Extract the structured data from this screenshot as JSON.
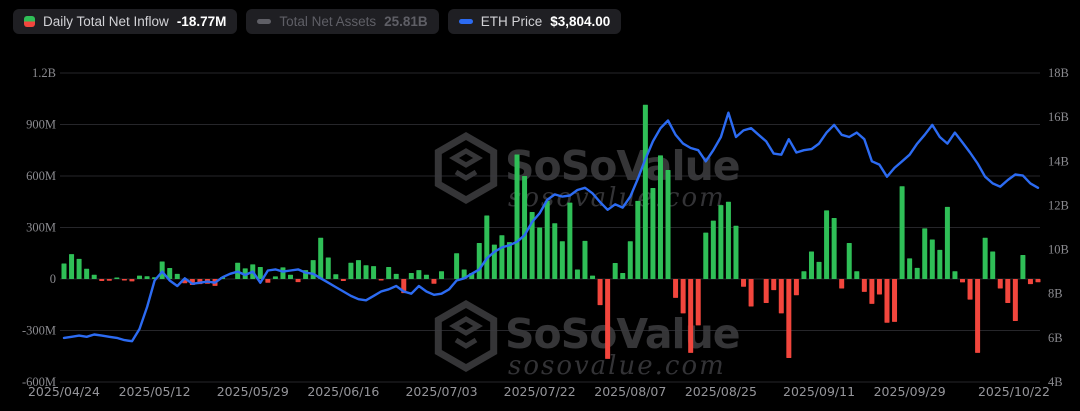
{
  "page": {
    "background": "#000000"
  },
  "legend": {
    "items": [
      {
        "id": "daily-net-inflow",
        "label": "Daily Total Net Inflow",
        "value": "-18.77M",
        "icon": "split-green-red-square",
        "enabled": true
      },
      {
        "id": "total-net-assets",
        "label": "Total Net Assets",
        "value": "25.81B",
        "icon": "gray-dash",
        "enabled": false
      },
      {
        "id": "eth-price",
        "label": "ETH Price",
        "value": "$3,804.00",
        "icon": "blue-dash",
        "enabled": true
      }
    ]
  },
  "watermark": {
    "brand": "SoSoValue",
    "domain": "sosovalue.com",
    "logo": "sosovalue-cube-logo"
  },
  "colors": {
    "bg": "#000000",
    "chip": "#1f1f23",
    "green": "#2fbf57",
    "red": "#f2463d",
    "blue": "#2c6bf2",
    "grid": "#26262a",
    "axisText": "#8a8a8f",
    "xAxisText": "#95959a",
    "legendText": "#d2d2d6",
    "legendValue": "#ffffff",
    "disabled": "#5f5f66",
    "watermark": "#3b3b3e",
    "watermarkSub": "#434347"
  },
  "axes": {
    "left": {
      "ticks": [
        "1.2B",
        "900M",
        "600M",
        "300M",
        "0",
        "-300M",
        "-600M"
      ],
      "range_millions": [
        -600,
        1200
      ]
    },
    "right": {
      "ticks": [
        "18B",
        "16B",
        "14B",
        "12B",
        "10B",
        "8B",
        "6B",
        "4B"
      ],
      "range_billions": [
        4,
        18
      ]
    },
    "x": {
      "ticks": [
        {
          "label": "2025/04/24",
          "index": 0
        },
        {
          "label": "2025/05/12",
          "index": 12
        },
        {
          "label": "2025/05/29",
          "index": 25
        },
        {
          "label": "2025/06/16",
          "index": 37
        },
        {
          "label": "2025/07/03",
          "index": 50
        },
        {
          "label": "2025/07/22",
          "index": 63
        },
        {
          "label": "2025/08/07",
          "index": 75
        },
        {
          "label": "2025/08/25",
          "index": 87
        },
        {
          "label": "2025/09/11",
          "index": 100
        },
        {
          "label": "2025/09/29",
          "index": 112
        },
        {
          "label": "2025/10/22",
          "index": 129
        }
      ]
    }
  },
  "chart_data": {
    "type": "combo",
    "x_dates": [
      "2025/04/24",
      "2025/04/25",
      "2025/04/28",
      "2025/04/29",
      "2025/04/30",
      "2025/05/01",
      "2025/05/02",
      "2025/05/05",
      "2025/05/06",
      "2025/05/07",
      "2025/05/08",
      "2025/05/09",
      "2025/05/12",
      "2025/05/13",
      "2025/05/14",
      "2025/05/15",
      "2025/05/16",
      "2025/05/19",
      "2025/05/20",
      "2025/05/21",
      "2025/05/22",
      "2025/05/23",
      "2025/05/26",
      "2025/05/27",
      "2025/05/28",
      "2025/05/29",
      "2025/05/30",
      "2025/06/02",
      "2025/06/03",
      "2025/06/04",
      "2025/06/05",
      "2025/06/06",
      "2025/06/09",
      "2025/06/10",
      "2025/06/11",
      "2025/06/12",
      "2025/06/13",
      "2025/06/16",
      "2025/06/17",
      "2025/06/18",
      "2025/06/19",
      "2025/06/20",
      "2025/06/23",
      "2025/06/24",
      "2025/06/25",
      "2025/06/26",
      "2025/06/27",
      "2025/06/30",
      "2025/07/01",
      "2025/07/02",
      "2025/07/03",
      "2025/07/04",
      "2025/07/07",
      "2025/07/08",
      "2025/07/09",
      "2025/07/10",
      "2025/07/11",
      "2025/07/14",
      "2025/07/15",
      "2025/07/16",
      "2025/07/17",
      "2025/07/18",
      "2025/07/21",
      "2025/07/22",
      "2025/07/23",
      "2025/07/24",
      "2025/07/25",
      "2025/07/28",
      "2025/07/29",
      "2025/07/30",
      "2025/07/31",
      "2025/08/01",
      "2025/08/04",
      "2025/08/05",
      "2025/08/06",
      "2025/08/07",
      "2025/08/08",
      "2025/08/11",
      "2025/08/12",
      "2025/08/13",
      "2025/08/14",
      "2025/08/15",
      "2025/08/18",
      "2025/08/19",
      "2025/08/20",
      "2025/08/21",
      "2025/08/22",
      "2025/08/25",
      "2025/08/26",
      "2025/08/27",
      "2025/08/28",
      "2025/08/29",
      "2025/09/01",
      "2025/09/02",
      "2025/09/03",
      "2025/09/04",
      "2025/09/05",
      "2025/09/08",
      "2025/09/09",
      "2025/09/10",
      "2025/09/11",
      "2025/09/12",
      "2025/09/15",
      "2025/09/16",
      "2025/09/17",
      "2025/09/18",
      "2025/09/19",
      "2025/09/22",
      "2025/09/23",
      "2025/09/24",
      "2025/09/25",
      "2025/09/26",
      "2025/09/29",
      "2025/09/30",
      "2025/10/01",
      "2025/10/02",
      "2025/10/03",
      "2025/10/06",
      "2025/10/07",
      "2025/10/08",
      "2025/10/09",
      "2025/10/10",
      "2025/10/13",
      "2025/10/14",
      "2025/10/15",
      "2025/10/16",
      "2025/10/17",
      "2025/10/20",
      "2025/10/21",
      "2025/10/22"
    ],
    "series": [
      {
        "name": "Daily Total Net Inflow",
        "type": "bar",
        "axis": "left",
        "unit": "USD millions",
        "values": [
          90,
          145,
          117,
          60,
          25,
          -12,
          -10,
          6,
          -8,
          -14,
          20,
          16,
          10,
          102,
          64,
          30,
          -25,
          -35,
          -30,
          -28,
          -40,
          12,
          null,
          95,
          62,
          85,
          70,
          -22,
          15,
          68,
          25,
          -18,
          52,
          110,
          240,
          125,
          28,
          -12,
          95,
          110,
          80,
          75,
          -8,
          70,
          30,
          -82,
          35,
          52,
          25,
          -28,
          45,
          null,
          150,
          55,
          35,
          210,
          370,
          200,
          255,
          215,
          725,
          600,
          390,
          300,
          455,
          325,
          220,
          445,
          55,
          222,
          20,
          -152,
          -465,
          93,
          35,
          220,
          455,
          1015,
          530,
          720,
          635,
          -110,
          -200,
          -430,
          -270,
          270,
          340,
          430,
          450,
          310,
          -45,
          -160,
          null,
          -140,
          -65,
          -200,
          -460,
          -95,
          45,
          160,
          100,
          400,
          355,
          -55,
          210,
          45,
          -75,
          -145,
          -90,
          -255,
          -250,
          540,
          120,
          65,
          295,
          230,
          170,
          420,
          45,
          -20,
          -120,
          -430,
          240,
          160,
          -55,
          -140,
          -245,
          140,
          -30,
          -18.77
        ]
      },
      {
        "name": "ETH Price",
        "type": "line",
        "axis": "right",
        "unit": "right-axis billions equivalent",
        "latest_display": "$3,804.00",
        "values": [
          6.0,
          6.05,
          6.1,
          6.05,
          6.15,
          6.1,
          6.05,
          6.0,
          5.9,
          5.85,
          6.4,
          7.4,
          8.6,
          9.0,
          8.6,
          8.35,
          8.7,
          8.45,
          8.5,
          8.55,
          8.5,
          8.75,
          8.9,
          9.0,
          8.85,
          9.0,
          8.5,
          9.05,
          9.1,
          9.0,
          9.05,
          9.1,
          8.95,
          8.9,
          8.7,
          8.5,
          8.3,
          8.1,
          7.9,
          7.75,
          7.7,
          7.9,
          8.1,
          8.2,
          8.35,
          8.1,
          8.0,
          8.35,
          8.1,
          7.95,
          8.0,
          8.2,
          8.6,
          8.7,
          8.9,
          9.1,
          9.6,
          9.9,
          10.1,
          10.2,
          10.35,
          10.65,
          11.25,
          11.65,
          12.25,
          12.5,
          12.4,
          12.45,
          12.7,
          12.8,
          12.55,
          12.15,
          11.8,
          12.05,
          11.9,
          12.4,
          13.2,
          14.1,
          14.9,
          15.5,
          15.85,
          15.2,
          14.8,
          14.6,
          14.5,
          14.0,
          14.5,
          15.1,
          16.2,
          15.1,
          15.4,
          15.5,
          15.2,
          14.9,
          14.35,
          14.3,
          15.0,
          14.4,
          14.5,
          14.55,
          14.8,
          15.3,
          15.65,
          15.2,
          15.1,
          15.3,
          15.0,
          14.0,
          13.85,
          13.3,
          13.7,
          14.0,
          14.3,
          14.8,
          15.2,
          15.65,
          15.1,
          14.8,
          15.3,
          14.85,
          14.4,
          13.9,
          13.3,
          13.0,
          12.85,
          13.15,
          13.4,
          13.35,
          13.0,
          12.8
        ]
      }
    ],
    "legend_position": "top-left",
    "grid": "horizontal-only"
  }
}
